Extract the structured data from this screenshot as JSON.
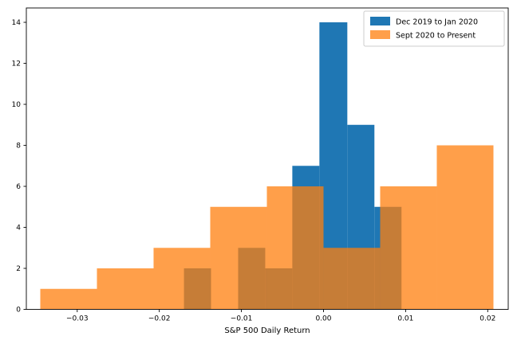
{
  "figure": {
    "background": "#ffffff"
  },
  "chart_data": {
    "type": "bar",
    "subtype": "overlapping-histogram",
    "title": "",
    "xlabel": "S&P 500 Daily Return",
    "ylabel": "",
    "xlim": [
      -0.0362,
      0.0225
    ],
    "ylim": [
      0,
      14.7
    ],
    "grid": false,
    "x_ticks": [
      -0.03,
      -0.02,
      -0.01,
      0.0,
      0.01,
      0.02
    ],
    "x_tick_labels": [
      "−0.03",
      "−0.02",
      "−0.01",
      "0.00",
      "0.01",
      "0.02"
    ],
    "y_ticks": [
      0,
      2,
      4,
      6,
      8,
      10,
      12,
      14
    ],
    "y_tick_labels": [
      "0",
      "2",
      "4",
      "6",
      "8",
      "10",
      "12",
      "14"
    ],
    "legend": {
      "position": "upper right",
      "entries": [
        {
          "label": "Dec 2019 to Jan 2020",
          "color": "#1f77b4",
          "opacity": 1.0
        },
        {
          "label": "Sept 2020 to Present",
          "color": "#ff7f0e",
          "opacity": 0.75
        }
      ]
    },
    "series": [
      {
        "name": "Dec 2019 to Jan 2020",
        "color": "#1f77b4",
        "opacity": 1.0,
        "bin_edges": [
          -0.017,
          -0.0137,
          -0.0104,
          -0.0071,
          -0.0038,
          -0.0005,
          0.0029,
          0.0062,
          0.0095
        ],
        "counts": [
          2,
          0,
          3,
          2,
          7,
          14,
          9,
          5
        ]
      },
      {
        "name": "Sept 2020 to Present",
        "color": "#ff7f0e",
        "opacity": 0.75,
        "bin_edges": [
          -0.0345,
          -0.0276,
          -0.0207,
          -0.0138,
          -0.0069,
          0.0,
          0.0069,
          0.0138,
          0.0207
        ],
        "counts": [
          1,
          2,
          3,
          5,
          6,
          3,
          6,
          8
        ]
      }
    ]
  }
}
